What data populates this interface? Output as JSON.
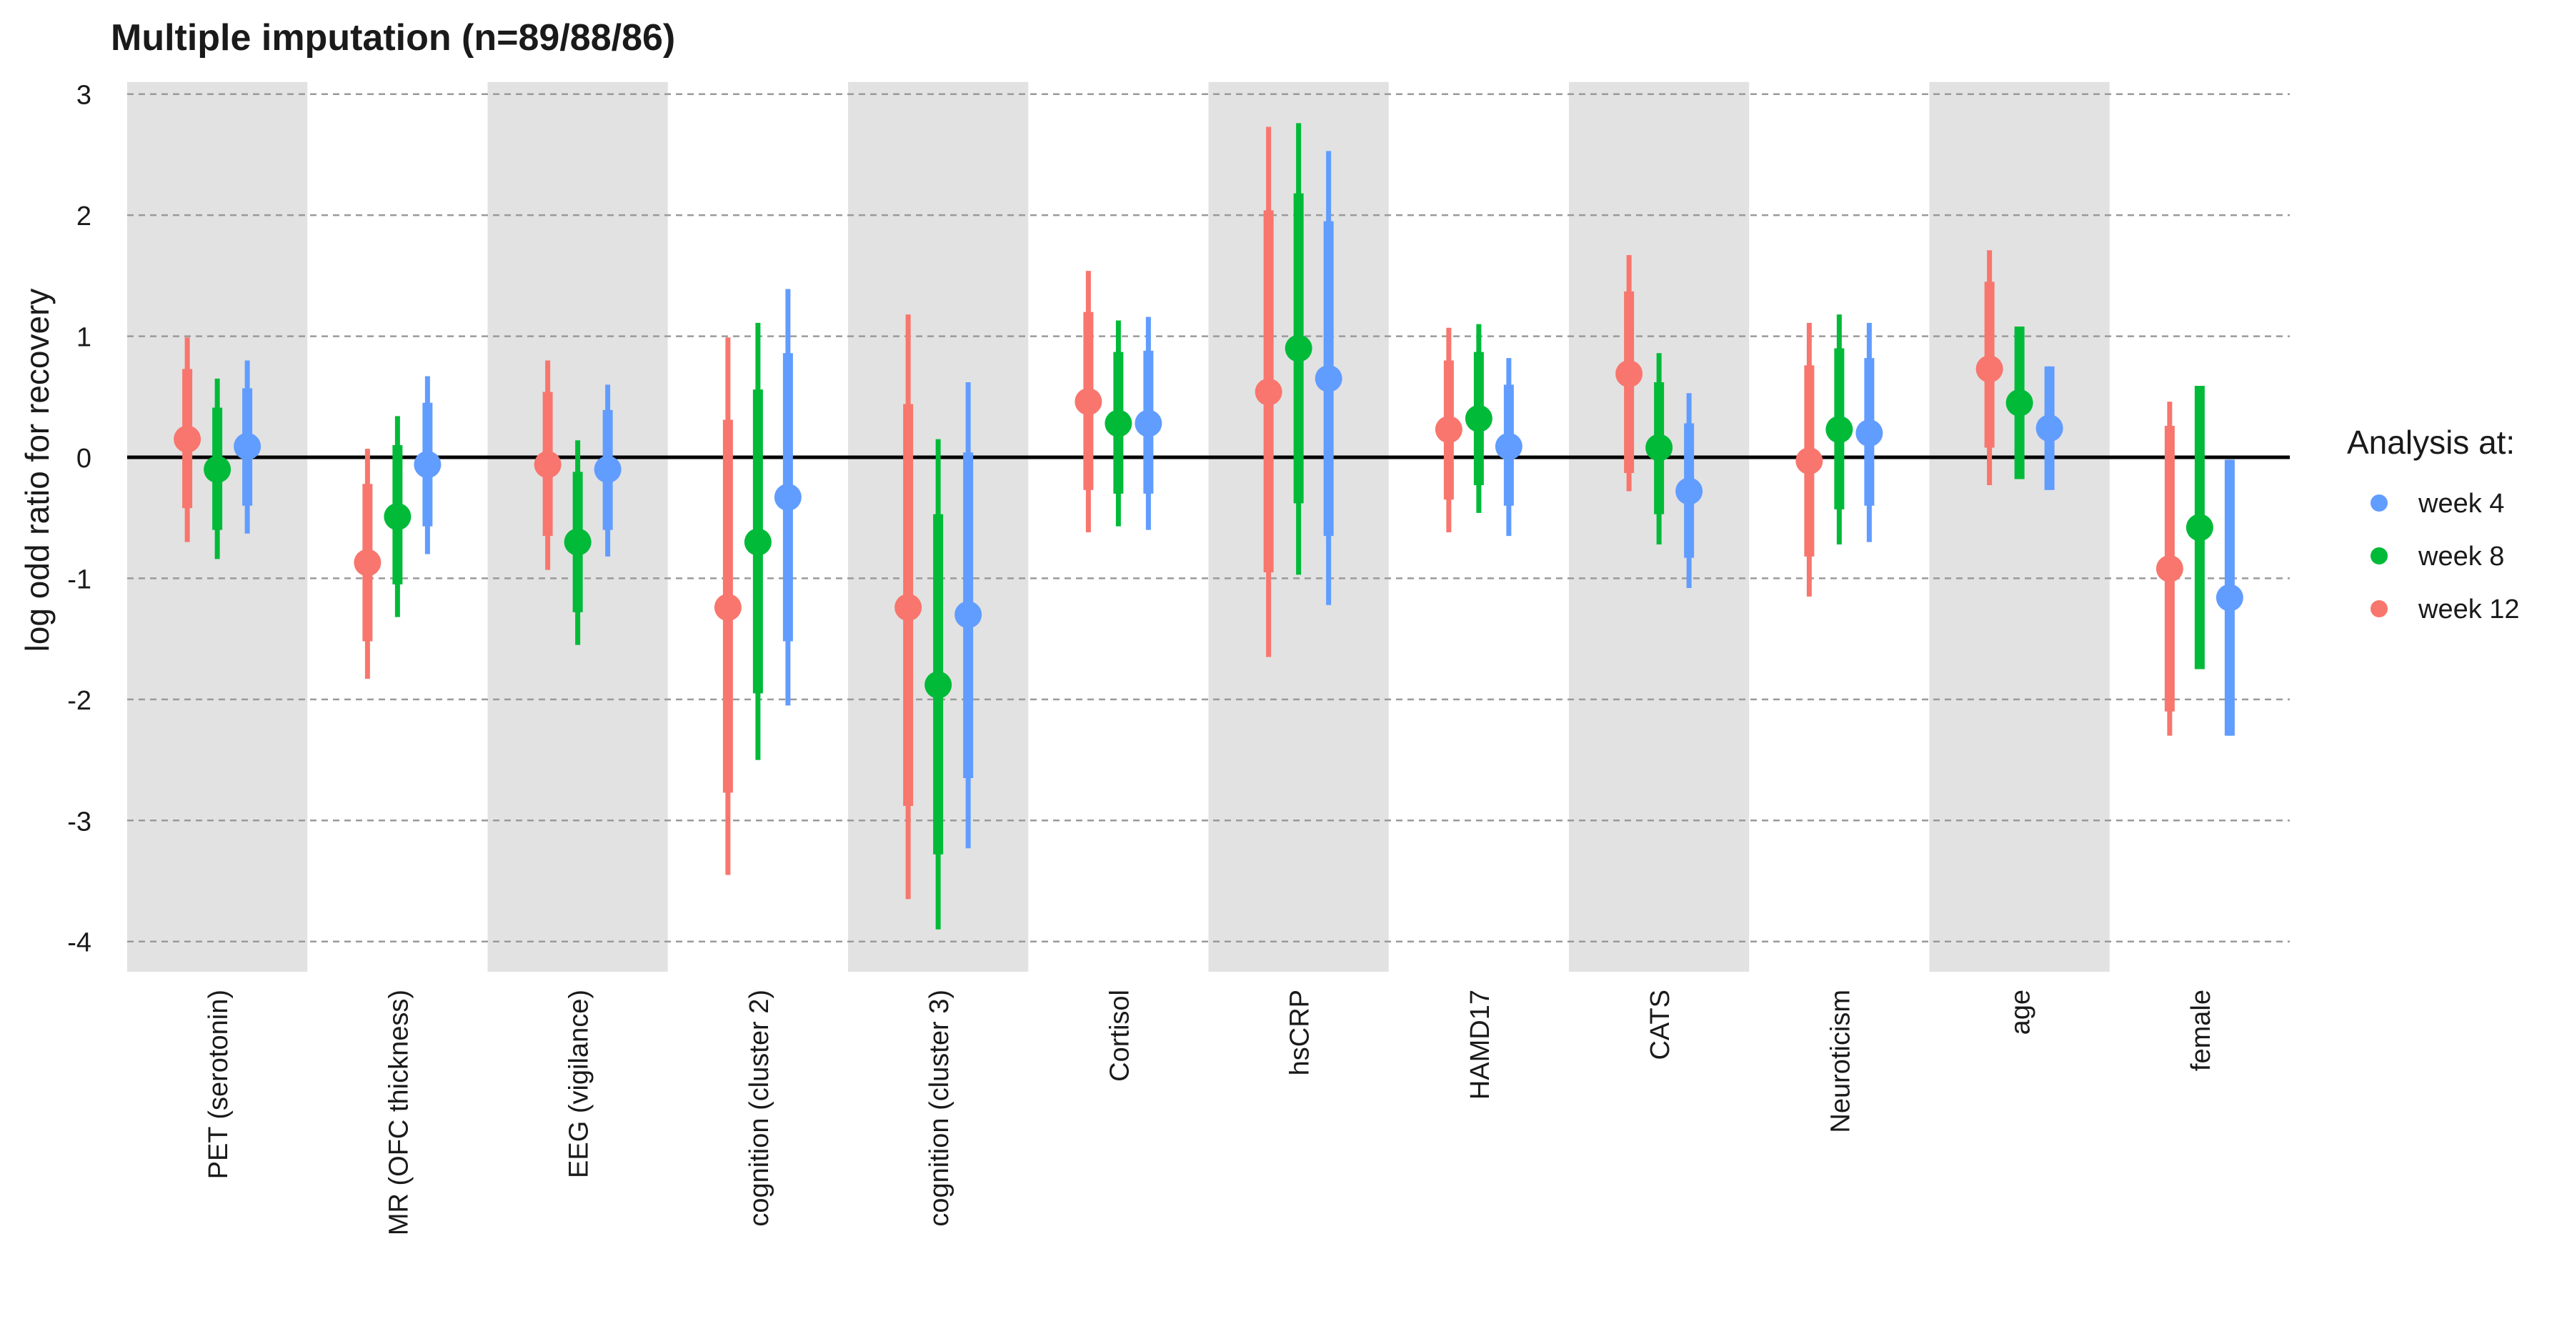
{
  "colors": {
    "week4": "#619CFF",
    "week8": "#00BA38",
    "week12": "#F8766D",
    "band": "#E2E2E2",
    "grid": "#9A9A9A",
    "zero": "#000000",
    "text": "#1A1A1A"
  },
  "chart_data": {
    "type": "scatter",
    "title": "Multiple imputation (n=89/88/86)",
    "xlabel": "",
    "ylabel": "log odd ratio for recovery",
    "ylim": [
      -4.25,
      3.1
    ],
    "yticks": [
      3,
      2,
      1,
      0,
      -1,
      -2,
      -3,
      -4
    ],
    "grid": "horizontal dashed",
    "zero_line": 0,
    "alternating_bands": true,
    "legend": {
      "title": "Analysis at:",
      "position": "right",
      "entries": [
        "week 4",
        "week 8",
        "week 12"
      ]
    },
    "categories": [
      "PET (serotonin)",
      "MR (OFC thickness)",
      "EEG (vigilance)",
      "cognition (cluster 2)",
      "cognition (cluster 3)",
      "Cortisol",
      "hsCRP",
      "HAMD17",
      "CATS",
      "Neuroticism",
      "age",
      "female"
    ],
    "series": [
      {
        "name": "week 12",
        "estimate": [
          0.15,
          -0.87,
          -0.06,
          -1.24,
          -1.24,
          0.46,
          0.54,
          0.23,
          0.69,
          -0.03,
          0.73,
          -0.92
        ],
        "inner": [
          [
            -0.42,
            0.73
          ],
          [
            -1.52,
            -0.22
          ],
          [
            -0.65,
            0.54
          ],
          [
            -2.77,
            0.31
          ],
          [
            -2.88,
            0.44
          ],
          [
            -0.27,
            1.2
          ],
          [
            -0.95,
            2.04
          ],
          [
            -0.35,
            0.8
          ],
          [
            -0.13,
            1.37
          ],
          [
            -0.82,
            0.76
          ],
          [
            0.08,
            1.45
          ],
          [
            -2.1,
            0.26
          ]
        ],
        "outer": [
          [
            -0.7,
            0.99
          ],
          [
            -1.83,
            0.07
          ],
          [
            -0.93,
            0.8
          ],
          [
            -3.45,
            0.99
          ],
          [
            -3.65,
            1.18
          ],
          [
            -0.62,
            1.54
          ],
          [
            -1.65,
            2.73
          ],
          [
            -0.62,
            1.07
          ],
          [
            -0.28,
            1.67
          ],
          [
            -1.15,
            1.11
          ],
          [
            -0.23,
            1.71
          ],
          [
            -2.3,
            0.46
          ]
        ]
      },
      {
        "name": "week 8",
        "estimate": [
          -0.1,
          -0.49,
          -0.7,
          -0.7,
          -1.88,
          0.28,
          0.9,
          0.32,
          0.08,
          0.23,
          0.45,
          -0.58
        ],
        "inner": [
          [
            -0.6,
            0.41
          ],
          [
            -1.05,
            0.1
          ],
          [
            -1.28,
            -0.12
          ],
          [
            -1.95,
            0.56
          ],
          [
            -3.28,
            -0.47
          ],
          [
            -0.3,
            0.87
          ],
          [
            -0.38,
            2.18
          ],
          [
            -0.23,
            0.87
          ],
          [
            -0.47,
            0.62
          ],
          [
            -0.43,
            0.9
          ],
          [
            -0.18,
            1.08
          ],
          [
            -1.75,
            0.59
          ]
        ],
        "outer": [
          [
            -0.84,
            0.65
          ],
          [
            -1.32,
            0.34
          ],
          [
            -1.55,
            0.14
          ],
          [
            -2.5,
            1.11
          ],
          [
            -3.9,
            0.15
          ],
          [
            -0.57,
            1.13
          ],
          [
            -0.97,
            2.76
          ],
          [
            -0.46,
            1.1
          ],
          [
            -0.72,
            0.86
          ],
          [
            -0.72,
            1.18
          ],
          [
            -0.18,
            1.08
          ],
          [
            -1.75,
            0.59
          ]
        ]
      },
      {
        "name": "week 4",
        "estimate": [
          0.09,
          -0.06,
          -0.1,
          -0.33,
          -1.3,
          0.28,
          0.65,
          0.09,
          -0.28,
          0.2,
          0.24,
          -1.16
        ],
        "inner": [
          [
            -0.4,
            0.57
          ],
          [
            -0.57,
            0.45
          ],
          [
            -0.6,
            0.39
          ],
          [
            -1.52,
            0.86
          ],
          [
            -2.65,
            0.04
          ],
          [
            -0.3,
            0.88
          ],
          [
            -0.65,
            1.95
          ],
          [
            -0.4,
            0.6
          ],
          [
            -0.83,
            0.28
          ],
          [
            -0.4,
            0.82
          ],
          [
            -0.27,
            0.75
          ],
          [
            -2.3,
            -0.02
          ]
        ],
        "outer": [
          [
            -0.63,
            0.8
          ],
          [
            -0.8,
            0.67
          ],
          [
            -0.82,
            0.6
          ],
          [
            -2.05,
            1.39
          ],
          [
            -3.23,
            0.62
          ],
          [
            -0.6,
            1.16
          ],
          [
            -1.22,
            2.53
          ],
          [
            -0.65,
            0.82
          ],
          [
            -1.08,
            0.53
          ],
          [
            -0.7,
            1.11
          ],
          [
            -0.27,
            0.75
          ],
          [
            -2.3,
            -0.02
          ]
        ]
      }
    ]
  }
}
